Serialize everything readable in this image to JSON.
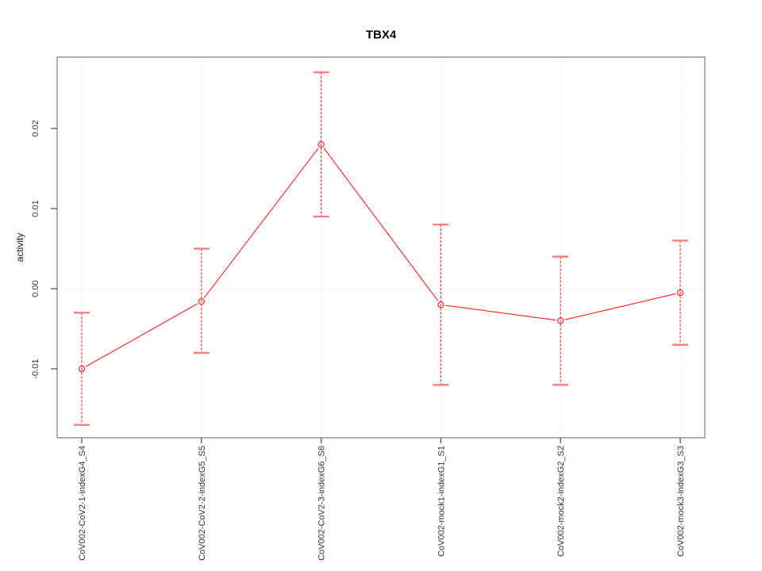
{
  "title": "TBX4",
  "chart_data": {
    "type": "line",
    "title": "TBX4",
    "xlabel": "",
    "ylabel": "activity",
    "legend": "none",
    "categories": [
      "CoV002-CoV2-1-indexG4_S4",
      "CoV002-CoV2-2-indexG5_S5",
      "CoV002-CoV2-3-indexG6_S6",
      "CoV002-mock1-indexG1_S1",
      "CoV002-mock2-indexG2_S2",
      "CoV002-mock3-indexG3_S3"
    ],
    "series": [
      {
        "name": "activity",
        "values": [
          -0.01,
          -0.0016,
          0.018,
          -0.002,
          -0.004,
          -0.0005
        ],
        "ci_low": [
          -0.017,
          -0.008,
          0.009,
          -0.012,
          -0.012,
          -0.007
        ],
        "ci_high": [
          -0.003,
          0.005,
          0.027,
          0.008,
          0.004,
          0.006
        ]
      }
    ],
    "yticks": [
      {
        "value": -0.01,
        "label": "-0.01"
      },
      {
        "value": 0.0,
        "label": "0.00"
      },
      {
        "value": 0.01,
        "label": "0.01"
      },
      {
        "value": 0.02,
        "label": "0.02"
      }
    ],
    "ylim": [
      -0.0186,
      0.0289
    ],
    "grid": {
      "vertical_gridlines_at_categories": true,
      "horizontal_gridline_at_zero": true,
      "style": "dotted"
    },
    "colors": {
      "series": "#ff2020",
      "error_bar_cap": "#fb7d7d",
      "gridline": "#dcdcdc",
      "frame": "#999999",
      "tick": "#555555",
      "axis_text": "#333333",
      "title_text": "#000000",
      "background": "#ffffff"
    }
  }
}
